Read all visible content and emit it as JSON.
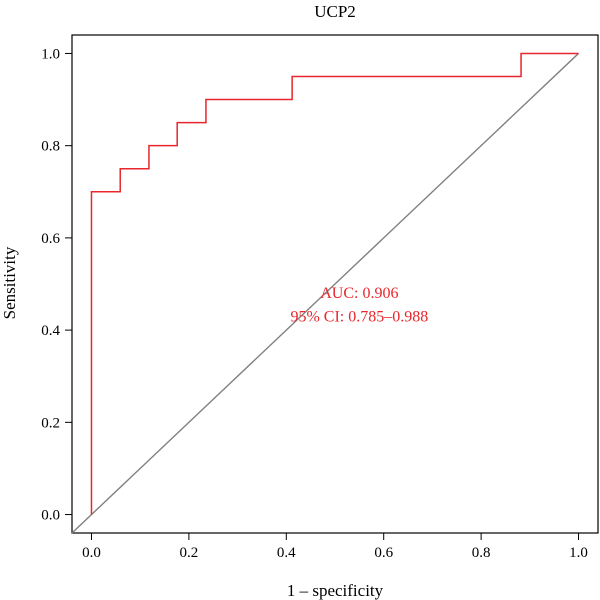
{
  "chart_data": {
    "type": "line",
    "title": "UCP2",
    "xlabel": "1 – specificity",
    "ylabel": "Sensitivity",
    "xlim": [
      -0.04,
      1.04
    ],
    "ylim": [
      -0.04,
      1.04
    ],
    "xticks": [
      0.0,
      0.2,
      0.4,
      0.6,
      0.8,
      1.0
    ],
    "yticks": [
      0.0,
      0.2,
      0.4,
      0.6,
      0.8,
      1.0
    ],
    "xtick_labels": [
      "0.0",
      "0.2",
      "0.4",
      "0.6",
      "0.8",
      "1.0"
    ],
    "ytick_labels": [
      "0.0",
      "0.2",
      "0.4",
      "0.6",
      "0.8",
      "1.0"
    ],
    "grid": false,
    "legend": "none",
    "series": [
      {
        "color": "#e8262c",
        "step": true,
        "x": [
          0.0,
          0.0,
          0.059,
          0.059,
          0.118,
          0.118,
          0.176,
          0.176,
          0.235,
          0.235,
          0.412,
          0.412,
          0.882,
          0.882,
          1.0
        ],
        "y": [
          0.0,
          0.7,
          0.7,
          0.75,
          0.75,
          0.8,
          0.8,
          0.85,
          0.85,
          0.9,
          0.9,
          0.95,
          0.95,
          1.0,
          1.0
        ]
      }
    ],
    "reference_line": {
      "color": "#808080",
      "x": [
        -0.04,
        1.0
      ],
      "y": [
        -0.04,
        1.0
      ]
    },
    "annotations": [
      {
        "text": "AUC: 0.906",
        "x": 0.55,
        "y": 0.48,
        "color": "#e8262c"
      },
      {
        "text": "95% CI: 0.785–0.988",
        "x": 0.55,
        "y": 0.43,
        "color": "#e8262c"
      }
    ]
  }
}
